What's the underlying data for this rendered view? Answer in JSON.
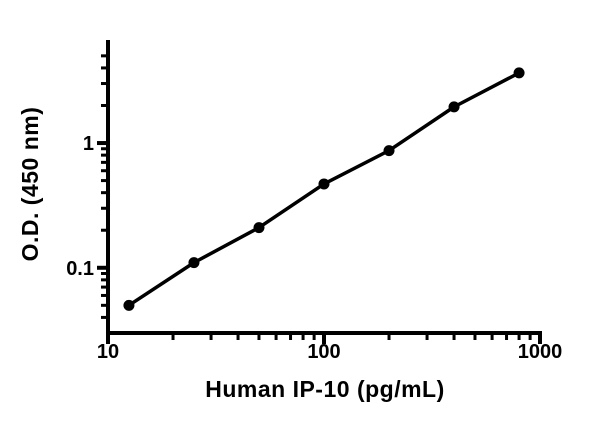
{
  "figure": {
    "background": "#ffffff",
    "ink": "#000000"
  },
  "chart_data": {
    "type": "scatter",
    "title": "",
    "xlabel": "Human IP-10 (pg/mL)",
    "ylabel": "O.D. (450 nm)",
    "x_scale": "log",
    "y_scale": "log",
    "xlim": [
      10,
      1000
    ],
    "ylim": [
      0.03,
      6.7
    ],
    "x": [
      12.5,
      25,
      50,
      100,
      200,
      400,
      800
    ],
    "y": [
      0.05,
      0.11,
      0.21,
      0.47,
      0.87,
      1.95,
      3.65
    ],
    "x_major_ticks": {
      "values": [
        10,
        100,
        1000
      ],
      "labels": [
        "10",
        "100",
        "1000"
      ]
    },
    "x_minor_ticks": [
      20,
      30,
      40,
      50,
      60,
      70,
      80,
      90,
      200,
      300,
      400,
      500,
      600,
      700,
      800,
      900
    ],
    "y_major_ticks": {
      "values": [
        0.1,
        1
      ],
      "labels": [
        "0.1",
        "1"
      ]
    },
    "y_minor_ticks": [
      0.04,
      0.05,
      0.06,
      0.07,
      0.08,
      0.09,
      0.2,
      0.3,
      0.4,
      0.5,
      0.6,
      0.7,
      0.8,
      0.9,
      2,
      3,
      4,
      5
    ],
    "grid": "off",
    "legend": "none",
    "marker": "filled-circle",
    "line": "solid"
  }
}
